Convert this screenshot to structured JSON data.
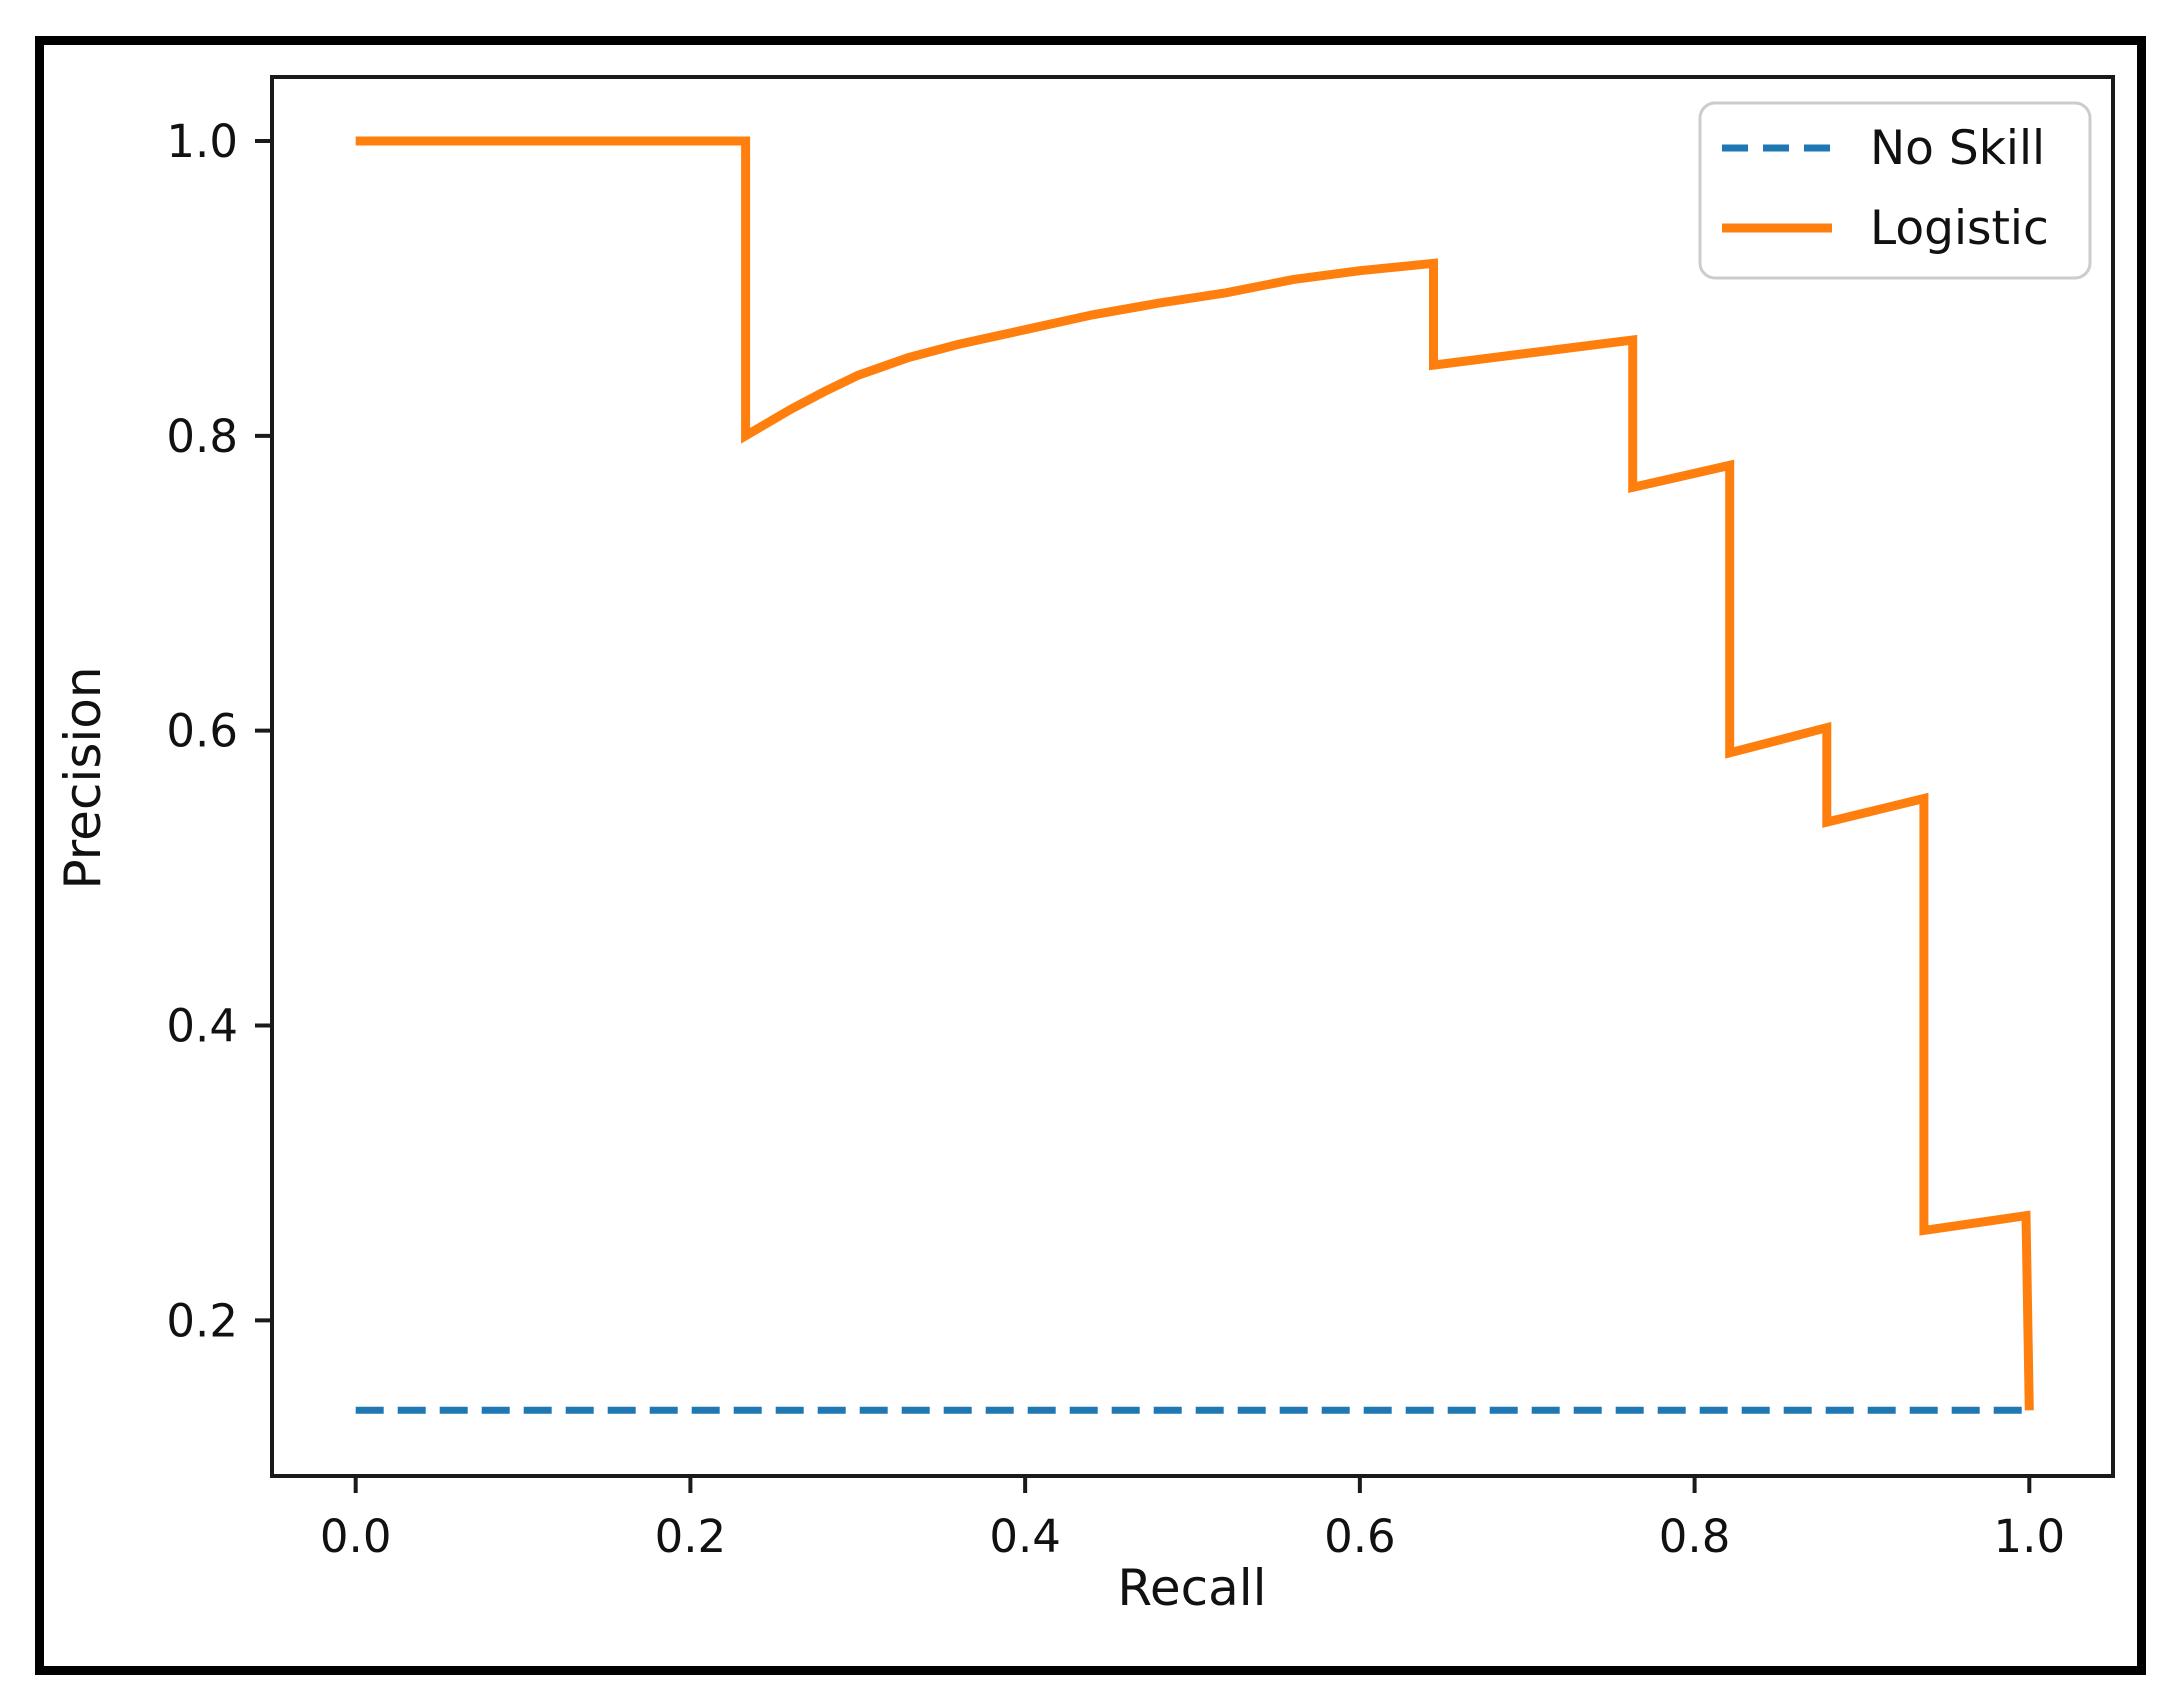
{
  "figure": {
    "background_color": "#ffffff",
    "frame_color": "#000000"
  },
  "chart_data": {
    "type": "line",
    "title": "",
    "xlabel": "Recall",
    "ylabel": "Precision",
    "xlim": [
      -0.05,
      1.05
    ],
    "ylim": [
      0.0944,
      1.0434
    ],
    "grid": false,
    "x_ticks": [
      {
        "value": 0.0,
        "label": "0.0"
      },
      {
        "value": 0.2,
        "label": "0.2"
      },
      {
        "value": 0.4,
        "label": "0.4"
      },
      {
        "value": 0.6,
        "label": "0.6"
      },
      {
        "value": 0.8,
        "label": "0.8"
      },
      {
        "value": 1.0,
        "label": "1.0"
      }
    ],
    "y_ticks": [
      {
        "value": 0.2,
        "label": "0.2"
      },
      {
        "value": 0.4,
        "label": "0.4"
      },
      {
        "value": 0.6,
        "label": "0.6"
      },
      {
        "value": 0.8,
        "label": "0.8"
      },
      {
        "value": 1.0,
        "label": "1.0"
      }
    ],
    "legend": {
      "position": "upper-right"
    },
    "series": [
      {
        "name": "No Skill",
        "style": "dashed",
        "color": "#1f77b4",
        "points": [
          [
            0.0,
            0.139
          ],
          [
            1.0,
            0.139
          ]
        ]
      },
      {
        "name": "Logistic",
        "style": "solid",
        "color": "#ff7f0e",
        "points": [
          [
            0.0,
            1.0
          ],
          [
            0.233,
            1.0
          ],
          [
            0.233,
            0.8
          ],
          [
            0.245,
            0.808
          ],
          [
            0.26,
            0.818
          ],
          [
            0.28,
            0.83
          ],
          [
            0.3,
            0.841
          ],
          [
            0.33,
            0.853
          ],
          [
            0.36,
            0.862
          ],
          [
            0.4,
            0.872
          ],
          [
            0.44,
            0.882
          ],
          [
            0.48,
            0.89
          ],
          [
            0.52,
            0.897
          ],
          [
            0.56,
            0.906
          ],
          [
            0.6,
            0.912
          ],
          [
            0.644,
            0.917
          ],
          [
            0.644,
            0.848
          ],
          [
            0.763,
            0.865
          ],
          [
            0.763,
            0.765
          ],
          [
            0.821,
            0.78
          ],
          [
            0.821,
            0.585
          ],
          [
            0.879,
            0.602
          ],
          [
            0.879,
            0.538
          ],
          [
            0.937,
            0.554
          ],
          [
            0.937,
            0.261
          ],
          [
            0.998,
            0.271
          ],
          [
            1.0,
            0.139
          ]
        ]
      }
    ]
  }
}
